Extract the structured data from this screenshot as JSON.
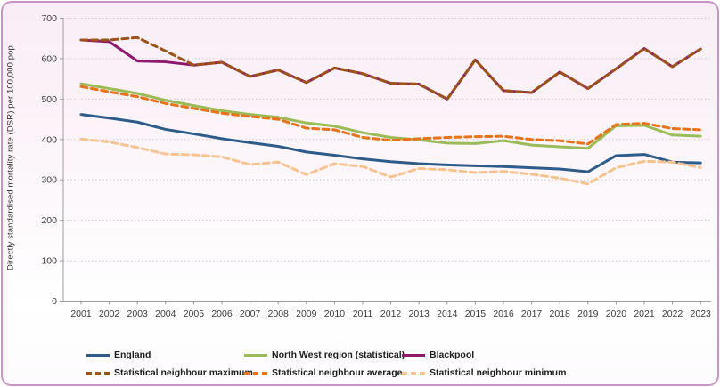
{
  "chart_data": {
    "type": "line",
    "title": "",
    "ylabel": "Directly standardised mortality rate (DSR) per 100,000 pop.",
    "xlabel": "",
    "x": [
      2001,
      2002,
      2003,
      2004,
      2005,
      2006,
      2007,
      2008,
      2009,
      2010,
      2011,
      2012,
      2013,
      2014,
      2015,
      2016,
      2017,
      2018,
      2019,
      2020,
      2021,
      2022,
      2023
    ],
    "y_ticks": [
      0,
      100,
      200,
      300,
      400,
      500,
      600,
      700
    ],
    "ylim": [
      0,
      700
    ],
    "grid": "horizontal-dotted",
    "legend_position": "bottom",
    "series": [
      {
        "name": "England",
        "color": "#2E5C8A",
        "style": "solid",
        "width": 3,
        "values": [
          462,
          453,
          443,
          425,
          414,
          402,
          392,
          383,
          369,
          361,
          352,
          345,
          340,
          337,
          335,
          333,
          330,
          327,
          320,
          360,
          363,
          344,
          342
        ]
      },
      {
        "name": "North West region (statistical)",
        "color": "#9BBB59",
        "style": "solid",
        "width": 3,
        "values": [
          538,
          526,
          514,
          497,
          484,
          471,
          462,
          455,
          441,
          433,
          417,
          405,
          399,
          391,
          390,
          397,
          386,
          382,
          378,
          434,
          435,
          411,
          408
        ]
      },
      {
        "name": "Blackpool",
        "color": "#8E1A6F",
        "style": "solid",
        "width": 3,
        "values": [
          646,
          642,
          594,
          592,
          584,
          591,
          556,
          572,
          541,
          577,
          563,
          539,
          537,
          500,
          597,
          521,
          516,
          567,
          526,
          575,
          625,
          580,
          624
        ]
      },
      {
        "name": "Statistical neighbour maximum",
        "color": "#9C5318",
        "style": "dashed",
        "width": 3,
        "values": [
          646,
          646,
          652,
          619,
          584,
          591,
          556,
          572,
          541,
          577,
          563,
          539,
          537,
          500,
          597,
          521,
          516,
          567,
          526,
          575,
          625,
          580,
          624
        ]
      },
      {
        "name": "Statistical neighbour average",
        "color": "#E8731A",
        "style": "dashed",
        "width": 3,
        "values": [
          531,
          518,
          506,
          489,
          477,
          465,
          457,
          450,
          428,
          424,
          405,
          398,
          402,
          405,
          407,
          408,
          400,
          397,
          389,
          437,
          440,
          427,
          424
        ]
      },
      {
        "name": "Statistical neighbour minimum",
        "color": "#F9C38F",
        "style": "dashed",
        "width": 3,
        "values": [
          401,
          394,
          380,
          364,
          362,
          357,
          338,
          344,
          313,
          340,
          333,
          307,
          328,
          325,
          318,
          321,
          314,
          304,
          290,
          330,
          346,
          344,
          330
        ]
      }
    ]
  }
}
